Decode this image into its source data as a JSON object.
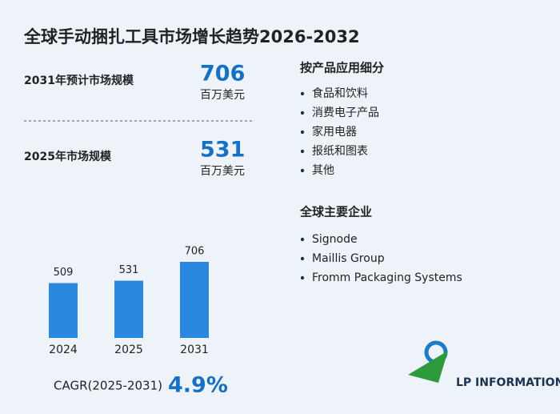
{
  "title": "全球手动捆扎工具市场增长趋势2026-2032",
  "stats": [
    {
      "label": "2031年预计市场规模",
      "value": 706,
      "unit": "百万美元"
    },
    {
      "label": "2025年市场规模",
      "value": 531,
      "unit": "百万美元"
    }
  ],
  "segments": {
    "title": "按产品应用细分",
    "items": [
      "食品和饮料",
      "消费电子产品",
      "家用电器",
      "报纸和图表",
      "其他"
    ]
  },
  "companies": {
    "title": "全球主要企业",
    "items": [
      "Signode",
      "Maillis Group",
      "Fromm Packaging Systems"
    ]
  },
  "cagr": {
    "label": "CAGR(2025-2031)",
    "value": "4.9%"
  },
  "logo": "LP INFORMATION",
  "chart_data": {
    "type": "bar",
    "categories": [
      "2024",
      "2025",
      "2031"
    ],
    "values": [
      509,
      531,
      706
    ],
    "color": "#2a88de"
  }
}
